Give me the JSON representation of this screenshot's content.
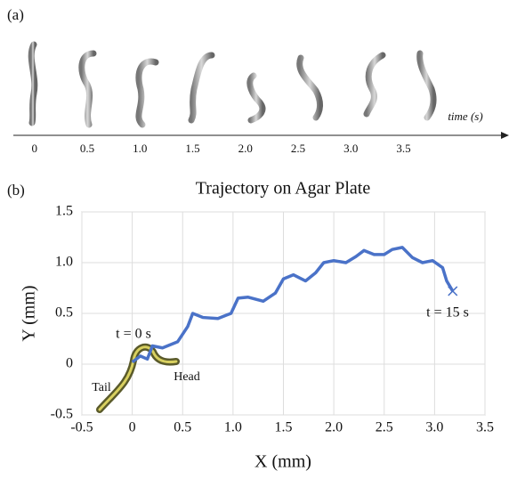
{
  "chart_data": [
    {
      "type": "timeline",
      "panel_label": "(a)",
      "xlabel": "time (s)",
      "xlim": [
        -0.2,
        4.5
      ],
      "xticks": [
        0,
        0.5,
        {
          "value": 1,
          "label": "1.0"
        },
        1.5,
        {
          "value": 2,
          "label": "2.0"
        },
        2.5,
        {
          "value": 3,
          "label": "3.0"
        },
        3.5
      ]
    },
    {
      "type": "line",
      "panel_label": "(b)",
      "title": "Trajectory on Agar Plate",
      "xlabel": "X (mm)",
      "ylabel": "Y (mm)",
      "xlim": [
        -0.5,
        3.5
      ],
      "ylim": [
        -0.5,
        1.5
      ],
      "xticks": [
        -0.5,
        0,
        0.5,
        {
          "value": 1,
          "label": "1.0"
        },
        1.5,
        {
          "value": 2,
          "label": "2.0"
        },
        2.5,
        {
          "value": 3,
          "label": "3.0"
        },
        3.5
      ],
      "yticks": [
        -0.5,
        0,
        0.5,
        {
          "value": 1,
          "label": "1.0"
        },
        1.5
      ],
      "grid": true,
      "annotations": [
        "t = 0 s",
        "t = 15 s",
        "Tail",
        "Head"
      ],
      "series": [
        {
          "color": "#4a72c8",
          "x": [
            0.0,
            0.08,
            0.15,
            0.2,
            0.3,
            0.45,
            0.55,
            0.6,
            0.7,
            0.85,
            0.98,
            1.05,
            1.15,
            1.3,
            1.42,
            1.5,
            1.6,
            1.72,
            1.82,
            1.9,
            2.0,
            2.12,
            2.22,
            2.3,
            2.4,
            2.5,
            2.58,
            2.68,
            2.78,
            2.88,
            2.98,
            3.08,
            3.12,
            3.18
          ],
          "values": [
            0.02,
            0.08,
            0.05,
            0.18,
            0.16,
            0.22,
            0.37,
            0.5,
            0.46,
            0.45,
            0.5,
            0.65,
            0.66,
            0.62,
            0.7,
            0.84,
            0.88,
            0.82,
            0.9,
            1.0,
            1.02,
            1.0,
            1.06,
            1.12,
            1.08,
            1.08,
            1.13,
            1.15,
            1.05,
            1.0,
            1.02,
            0.95,
            0.82,
            0.72
          ]
        }
      ]
    }
  ]
}
